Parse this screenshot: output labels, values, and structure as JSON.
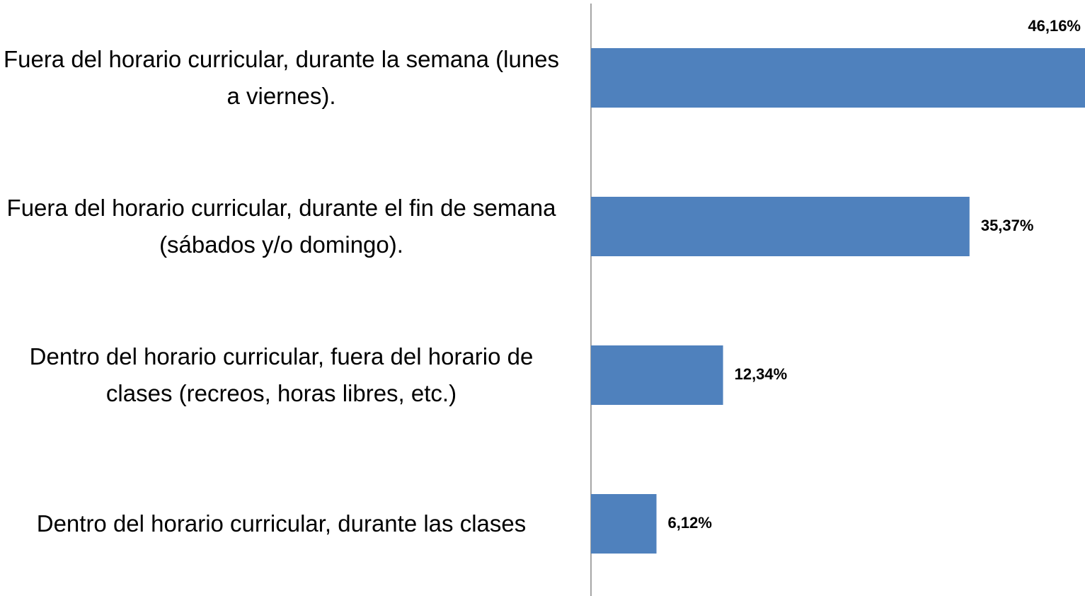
{
  "chart_data": {
    "type": "bar",
    "orientation": "horizontal",
    "categories": [
      "Fuera del horario curricular, durante la semana (lunes a viernes).",
      "Fuera del horario curricular, durante el fin de semana (sábados y/o domingo).",
      "Dentro del horario curricular, fuera del horario de clases (recreos, horas libres, etc.)",
      "Dentro del horario curricular, durante las clases"
    ],
    "values": [
      46.16,
      35.37,
      12.34,
      6.12
    ],
    "value_labels": [
      "46,16%",
      "35,37%",
      "12,34%",
      "6,12%"
    ],
    "color": "#4f81bd",
    "xlim": [
      0,
      46.16
    ]
  }
}
